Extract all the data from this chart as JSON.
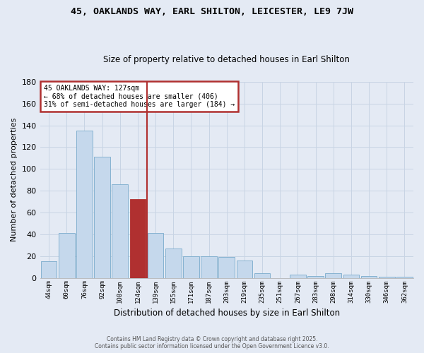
{
  "title": "45, OAKLANDS WAY, EARL SHILTON, LEICESTER, LE9 7JW",
  "subtitle": "Size of property relative to detached houses in Earl Shilton",
  "xlabel": "Distribution of detached houses by size in Earl Shilton",
  "ylabel": "Number of detached properties",
  "annotation_line1": "45 OAKLANDS WAY: 127sqm",
  "annotation_line2": "← 68% of detached houses are smaller (406)",
  "annotation_line3": "31% of semi-detached houses are larger (184) →",
  "categories": [
    "44sqm",
    "60sqm",
    "76sqm",
    "92sqm",
    "108sqm",
    "124sqm",
    "139sqm",
    "155sqm",
    "171sqm",
    "187sqm",
    "203sqm",
    "219sqm",
    "235sqm",
    "251sqm",
    "267sqm",
    "283sqm",
    "298sqm",
    "314sqm",
    "330sqm",
    "346sqm",
    "362sqm"
  ],
  "values": [
    15,
    41,
    135,
    111,
    86,
    72,
    41,
    27,
    20,
    20,
    19,
    16,
    4,
    0,
    3,
    2,
    4,
    3,
    2,
    1,
    1
  ],
  "highlight_index": 5,
  "bar_color": "#c5d8ec",
  "highlight_color": "#b03030",
  "vline_color": "#b03030",
  "annotation_box_edgecolor": "#b03030",
  "grid_color": "#c8d4e4",
  "bg_color": "#e4eaf4",
  "ylim": [
    0,
    180
  ],
  "yticks": [
    0,
    20,
    40,
    60,
    80,
    100,
    120,
    140,
    160,
    180
  ],
  "footer1": "Contains HM Land Registry data © Crown copyright and database right 2025.",
  "footer2": "Contains public sector information licensed under the Open Government Licence v3.0."
}
